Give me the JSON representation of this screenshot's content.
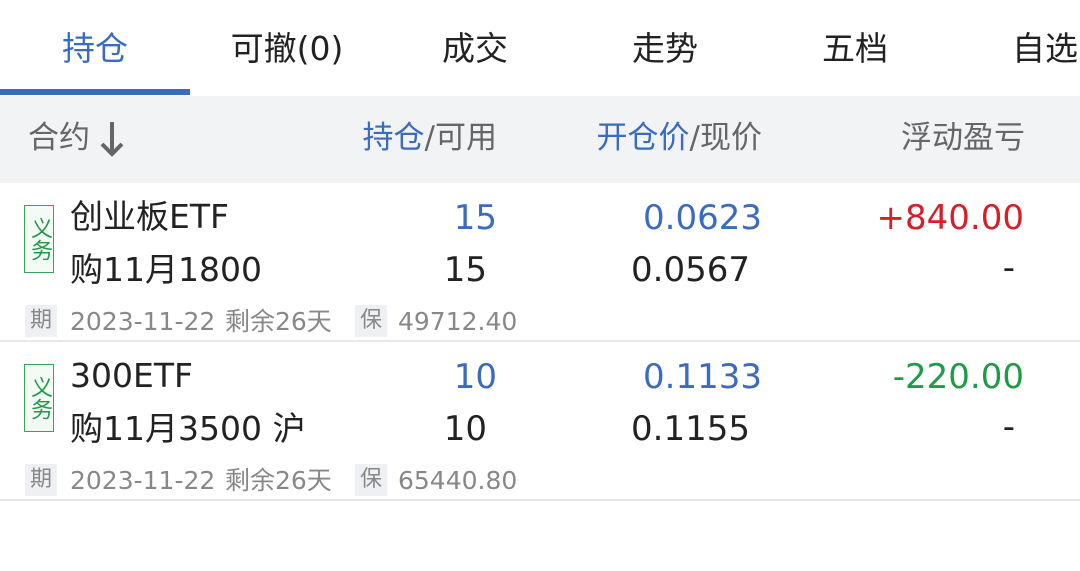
{
  "tabs": [
    "持仓",
    "可撤(0)",
    "成交",
    "走势",
    "五档",
    "自选"
  ],
  "header": {
    "contract": "合约",
    "hold": "持仓",
    "available": "/可用",
    "open_price": "开仓价",
    "current_price": "/现价",
    "pnl": "浮动盈亏"
  },
  "rows": [
    {
      "tag": "义务",
      "name": "创业板ETF",
      "detail": "购11月1800",
      "hold": "15",
      "available": "15",
      "open_price": "0.0623",
      "current_price": "0.0567",
      "pnl": "+840.00",
      "pnl_sub": "-",
      "expiry_badge": "期",
      "expiry": "2023-11-22",
      "remaining": "剩余26天",
      "margin_badge": "保",
      "margin": "49712.40"
    },
    {
      "tag": "义务",
      "name": "300ETF",
      "detail": "购11月3500 沪",
      "hold": "10",
      "available": "10",
      "open_price": "0.1133",
      "current_price": "0.1155",
      "pnl": "-220.00",
      "pnl_sub": "-",
      "expiry_badge": "期",
      "expiry": "2023-11-22",
      "remaining": "剩余26天",
      "margin_badge": "保",
      "margin": "65440.80"
    }
  ]
}
